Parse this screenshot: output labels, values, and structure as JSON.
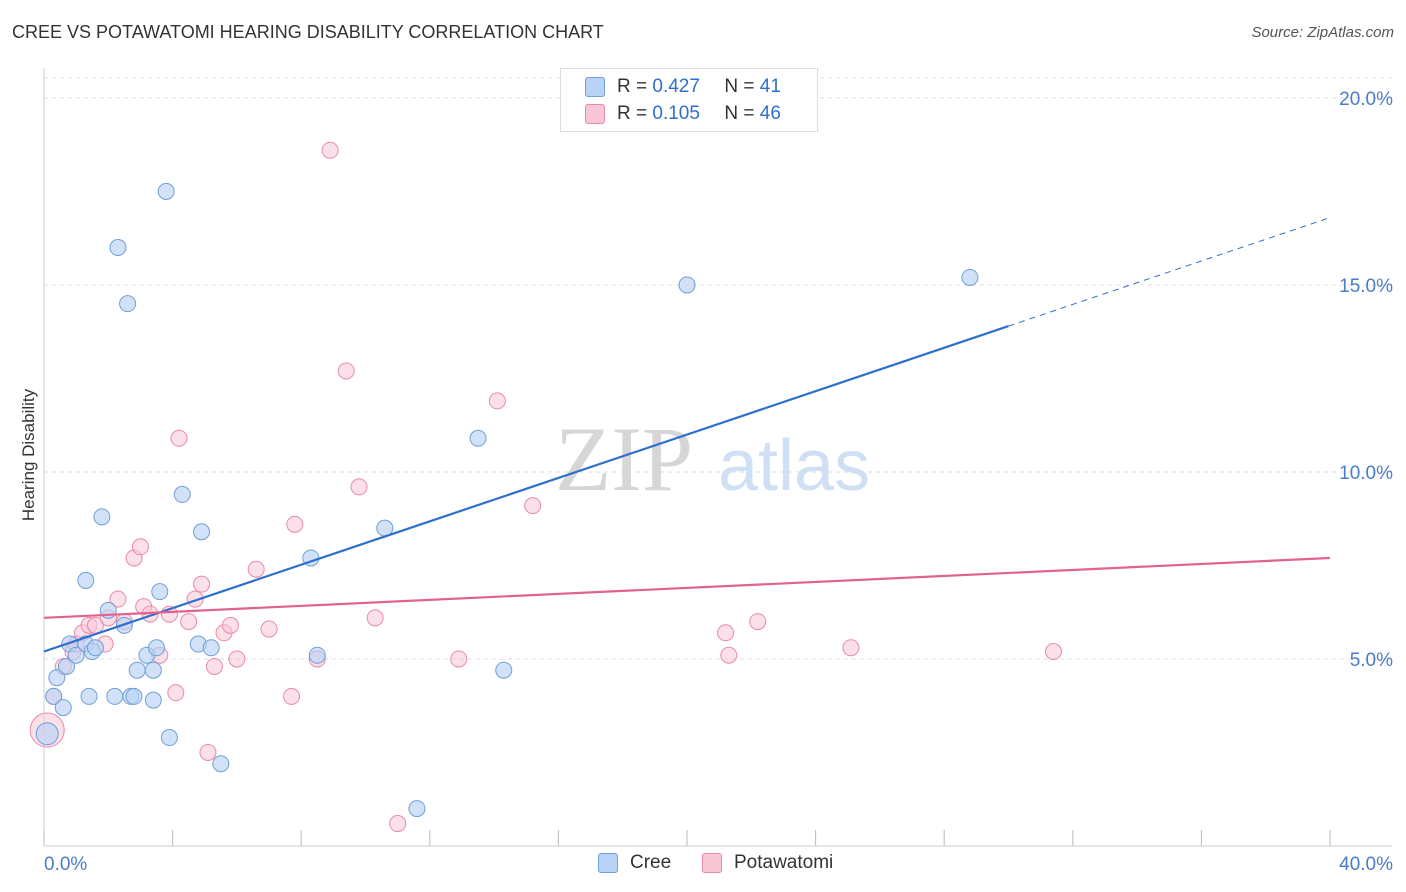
{
  "header": {
    "title": "CREE VS POTAWATOMI HEARING DISABILITY CORRELATION CHART",
    "source": "Source: ZipAtlas.com"
  },
  "legend": {
    "rows": [
      {
        "r_label": "R =",
        "r_value": "0.427",
        "n_label": "N =",
        "n_value": "41"
      },
      {
        "r_label": "R =",
        "r_value": "0.105",
        "n_label": "N =",
        "n_value": "46"
      }
    ]
  },
  "watermark": {
    "zip": "ZIP",
    "atlas": "atlas"
  },
  "colors": {
    "cree_fill": "#b8d3f5",
    "cree_stroke": "#6f9fd8",
    "cree_line": "#2e6fcc",
    "pota_fill": "#f9c6d6",
    "pota_stroke": "#e88aaa",
    "pota_line": "#e2628e"
  },
  "chart_data": {
    "type": "scatter",
    "title": "CREE VS POTAWATOMI HEARING DISABILITY CORRELATION CHART",
    "xlabel": "",
    "ylabel": "Hearing Disability",
    "xlim": [
      0,
      40
    ],
    "ylim": [
      0,
      20.8
    ],
    "x_tick_labels": [
      "0.0%",
      "40.0%"
    ],
    "y_ticks": [
      5,
      10,
      15,
      20
    ],
    "y_tick_labels": [
      "5.0%",
      "10.0%",
      "15.0%",
      "20.0%"
    ],
    "grid": true,
    "legend_position": "top-center",
    "series": [
      {
        "name": "Cree",
        "R": 0.427,
        "N": 41,
        "trend": {
          "x0": 0,
          "y0": 5.2,
          "x1": 30,
          "y1": 13.9,
          "dashed_to_x": 40,
          "dashed_to_y": 16.8
        },
        "points": [
          [
            0.1,
            3.0
          ],
          [
            0.3,
            4.0
          ],
          [
            0.4,
            4.5
          ],
          [
            0.6,
            3.7
          ],
          [
            0.7,
            4.8
          ],
          [
            0.8,
            5.4
          ],
          [
            1.0,
            5.1
          ],
          [
            1.3,
            5.4
          ],
          [
            1.3,
            7.1
          ],
          [
            1.4,
            4.0
          ],
          [
            1.5,
            5.2
          ],
          [
            1.6,
            5.3
          ],
          [
            1.8,
            8.8
          ],
          [
            2.0,
            6.3
          ],
          [
            2.2,
            4.0
          ],
          [
            2.3,
            16.0
          ],
          [
            2.5,
            5.9
          ],
          [
            2.6,
            14.5
          ],
          [
            2.7,
            4.0
          ],
          [
            2.8,
            4.0
          ],
          [
            2.9,
            4.7
          ],
          [
            3.2,
            5.1
          ],
          [
            3.4,
            4.7
          ],
          [
            3.4,
            3.9
          ],
          [
            3.5,
            5.3
          ],
          [
            3.6,
            6.8
          ],
          [
            3.8,
            17.5
          ],
          [
            3.9,
            2.9
          ],
          [
            4.3,
            9.4
          ],
          [
            4.8,
            5.4
          ],
          [
            4.9,
            8.4
          ],
          [
            5.2,
            5.3
          ],
          [
            5.5,
            2.2
          ],
          [
            8.3,
            7.7
          ],
          [
            8.5,
            5.1
          ],
          [
            10.6,
            8.5
          ],
          [
            11.6,
            1.0
          ],
          [
            13.5,
            10.9
          ],
          [
            14.3,
            4.7
          ],
          [
            20.0,
            15.0
          ],
          [
            28.8,
            15.2
          ]
        ]
      },
      {
        "name": "Potawatomi",
        "R": 0.105,
        "N": 46,
        "trend": {
          "x0": 0,
          "y0": 6.1,
          "x1": 40,
          "y1": 7.7
        },
        "points": [
          [
            0.1,
            3.1
          ],
          [
            0.3,
            4.0
          ],
          [
            0.6,
            4.8
          ],
          [
            0.9,
            5.2
          ],
          [
            1.0,
            5.4
          ],
          [
            1.2,
            5.7
          ],
          [
            1.4,
            5.9
          ],
          [
            1.6,
            5.9
          ],
          [
            1.9,
            5.4
          ],
          [
            2.0,
            6.1
          ],
          [
            2.3,
            6.6
          ],
          [
            2.5,
            6.0
          ],
          [
            2.8,
            7.7
          ],
          [
            3.0,
            8.0
          ],
          [
            3.1,
            6.4
          ],
          [
            3.3,
            6.2
          ],
          [
            3.6,
            5.1
          ],
          [
            3.9,
            6.2
          ],
          [
            4.1,
            4.1
          ],
          [
            4.2,
            10.9
          ],
          [
            4.5,
            6.0
          ],
          [
            4.7,
            6.6
          ],
          [
            4.9,
            7.0
          ],
          [
            5.1,
            2.5
          ],
          [
            5.3,
            4.8
          ],
          [
            5.6,
            5.7
          ],
          [
            5.8,
            5.9
          ],
          [
            6.0,
            5.0
          ],
          [
            6.6,
            7.4
          ],
          [
            7.0,
            5.8
          ],
          [
            7.7,
            4.0
          ],
          [
            7.8,
            8.6
          ],
          [
            8.5,
            5.0
          ],
          [
            9.4,
            12.7
          ],
          [
            9.8,
            9.6
          ],
          [
            10.3,
            6.1
          ],
          [
            11.0,
            0.6
          ],
          [
            12.9,
            5.0
          ],
          [
            14.1,
            11.9
          ],
          [
            15.2,
            9.1
          ],
          [
            8.9,
            18.6
          ],
          [
            21.2,
            5.7
          ],
          [
            21.3,
            5.1
          ],
          [
            22.2,
            6.0
          ],
          [
            25.1,
            5.3
          ],
          [
            31.4,
            5.2
          ]
        ]
      }
    ]
  },
  "bottom_legend": {
    "items": [
      "Cree",
      "Potawatomi"
    ]
  }
}
